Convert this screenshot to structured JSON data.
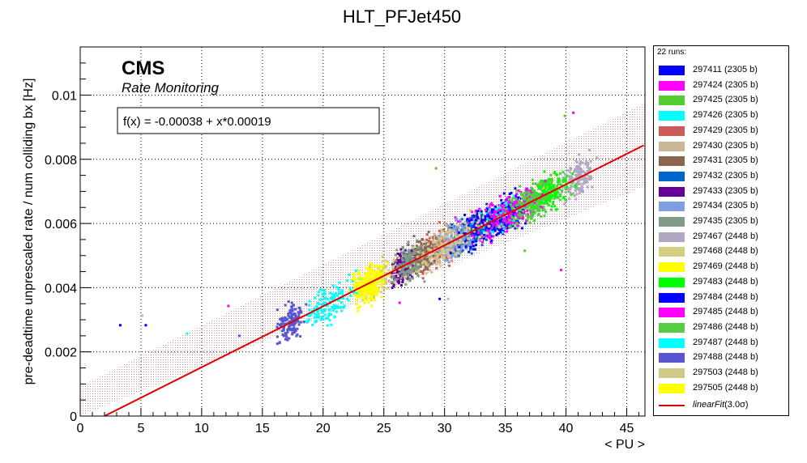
{
  "chart_data": {
    "type": "scatter",
    "title": "HLT_PFJet450",
    "xlabel": "< PU >",
    "ylabel": "pre-deadtime unprescaled rate / num colliding bx [Hz]",
    "xlim": [
      0,
      46.5
    ],
    "ylim": [
      0,
      0.0115
    ],
    "x_ticks": [
      "0",
      "5",
      "10",
      "15",
      "20",
      "25",
      "30",
      "35",
      "40",
      "45"
    ],
    "y_ticks": [
      "0",
      "0.002",
      "0.004",
      "0.006",
      "0.008",
      "0.01"
    ],
    "grid": true,
    "cms_label": "CMS",
    "cms_sublabel": "Rate Monitoring",
    "fit_label": "f(x) = -0.00038 + x*0.00019",
    "fit": {
      "intercept": -0.00038,
      "slope": 0.00019,
      "band_halfwidth": 0.0013
    },
    "legend_title": "22 runs:",
    "legend_fit_label": "linearFit",
    "legend_fit_suffix": "(3.0σ)",
    "legend_position": "right",
    "series": [
      {
        "name": "297411 (2305 b)",
        "color": "#0000ff",
        "center": 35.0,
        "spread": 2.2
      },
      {
        "name": "297424 (2305 b)",
        "color": "#ff00ff",
        "center": 33.0,
        "spread": 3.0
      },
      {
        "name": "297425 (2305 b)",
        "color": "#55cc33",
        "center": 38.0,
        "spread": 2.0
      },
      {
        "name": "297426 (2305 b)",
        "color": "#00ffff",
        "center": 34.5,
        "spread": 1.5
      },
      {
        "name": "297429 (2305 b)",
        "color": "#cc5a5a",
        "center": 29.5,
        "spread": 1.5
      },
      {
        "name": "297430 (2305 b)",
        "color": "#c8b898",
        "center": 30.0,
        "spread": 3.0
      },
      {
        "name": "297431 (2305 b)",
        "color": "#8a6650",
        "center": 28.0,
        "spread": 1.5
      },
      {
        "name": "297432 (2305 b)",
        "color": "#0066cc",
        "center": 32.0,
        "spread": 1.5
      },
      {
        "name": "297433 (2305 b)",
        "color": "#660099",
        "center": 26.5,
        "spread": 1.0
      },
      {
        "name": "297434 (2305 b)",
        "color": "#7f9fe0",
        "center": 31.0,
        "spread": 1.5
      },
      {
        "name": "297435 (2305 b)",
        "color": "#7f9a88",
        "center": 27.0,
        "spread": 1.2
      },
      {
        "name": "297467 (2448 b)",
        "color": "#b0a8c0",
        "center": 41.0,
        "spread": 1.2
      },
      {
        "name": "297468 (2448 b)",
        "color": "#d2ce82",
        "center": 24.5,
        "spread": 1.5
      },
      {
        "name": "297469 (2448 b)",
        "color": "#ffff00",
        "center": 23.5,
        "spread": 1.2
      },
      {
        "name": "297483 (2448 b)",
        "color": "#00ff00",
        "center": 38.5,
        "spread": 2.0
      },
      {
        "name": "297484 (2448 b)",
        "color": "#0000ff",
        "center": 33.5,
        "spread": 2.5
      },
      {
        "name": "297485 (2448 b)",
        "color": "#ff00ff",
        "center": 35.5,
        "spread": 2.5
      },
      {
        "name": "297486 (2448 b)",
        "color": "#55cc44",
        "center": 37.0,
        "spread": 2.0
      },
      {
        "name": "297487 (2448 b)",
        "color": "#00ffff",
        "center": 20.5,
        "spread": 2.2
      },
      {
        "name": "297488 (2448 b)",
        "color": "#5a55d0",
        "center": 17.3,
        "spread": 1.0
      },
      {
        "name": "297503 (2448 b)",
        "color": "#d2c88a",
        "center": 30.5,
        "spread": 3.5
      },
      {
        "name": "297505 (2448 b)",
        "color": "#ffff00",
        "center": 24.0,
        "spread": 1.2
      }
    ],
    "outliers": [
      {
        "x": 3.3,
        "y": 0.00283,
        "color": "#0000ff"
      },
      {
        "x": 5.1,
        "y": 0.00313,
        "color": "#c8b898"
      },
      {
        "x": 5.4,
        "y": 0.00283,
        "color": "#0000ff"
      },
      {
        "x": 8.8,
        "y": 0.00257,
        "color": "#00ffff"
      },
      {
        "x": 12.2,
        "y": 0.00343,
        "color": "#ff00ff"
      },
      {
        "x": 13.1,
        "y": 0.0025,
        "color": "#5a55d0"
      },
      {
        "x": 26.3,
        "y": 0.00353,
        "color": "#ff00ff"
      },
      {
        "x": 29.3,
        "y": 0.00772,
        "color": "#55cc33"
      },
      {
        "x": 29.6,
        "y": 0.00365,
        "color": "#0000ff"
      },
      {
        "x": 30.3,
        "y": 0.00365,
        "color": "#c8b898"
      },
      {
        "x": 36.6,
        "y": 0.00515,
        "color": "#55cc33"
      },
      {
        "x": 39.6,
        "y": 0.00455,
        "color": "#ff00ff"
      },
      {
        "x": 40.6,
        "y": 0.00945,
        "color": "#ff00ff"
      },
      {
        "x": 39.9,
        "y": 0.00935,
        "color": "#55cc33"
      }
    ]
  }
}
